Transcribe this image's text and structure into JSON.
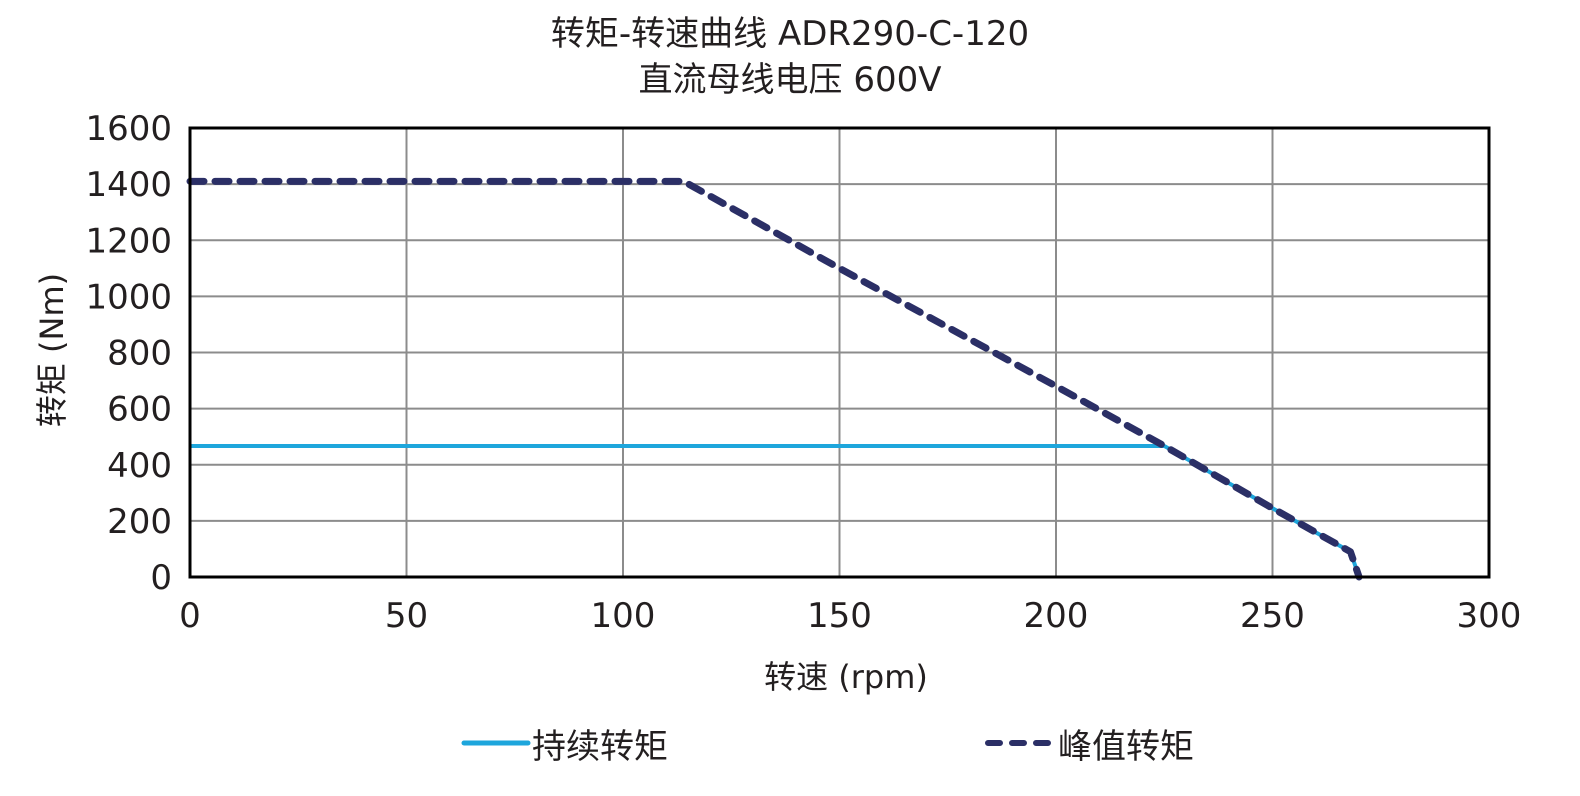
{
  "chart_data": {
    "type": "line",
    "title": "转矩-转速曲线 ADR290-C-120",
    "subtitle": "直流母线电压 600V",
    "xlabel": "转速 (rpm)",
    "ylabel": "转矩 (Nm)",
    "xlim": [
      0,
      300
    ],
    "ylim": [
      0,
      1600
    ],
    "xticks": [
      0,
      50,
      100,
      150,
      200,
      250,
      300
    ],
    "yticks": [
      0,
      200,
      400,
      600,
      800,
      1000,
      1200,
      1400,
      1600
    ],
    "grid": true,
    "legend_position": "bottom",
    "series": [
      {
        "name": "持续转矩",
        "style": "solid",
        "color": "#1ea6dc",
        "x": [
          0,
          225,
          250,
          268,
          270
        ],
        "y": [
          467,
          467,
          245,
          90,
          0
        ]
      },
      {
        "name": "峰值转矩",
        "style": "dashed",
        "color": "#2b2f66",
        "x": [
          0,
          114,
          150,
          200,
          225,
          250,
          268,
          270
        ],
        "y": [
          1410,
          1410,
          1100,
          680,
          467,
          245,
          90,
          0
        ]
      }
    ]
  },
  "labels": {
    "title": "转矩-转速曲线 ADR290-C-120",
    "subtitle": "直流母线电压 600V",
    "xlabel": "转速 (rpm)",
    "ylabel": "转矩 (Nm)",
    "legend_continuous": "持续转矩",
    "legend_peak": "峰值转矩"
  }
}
